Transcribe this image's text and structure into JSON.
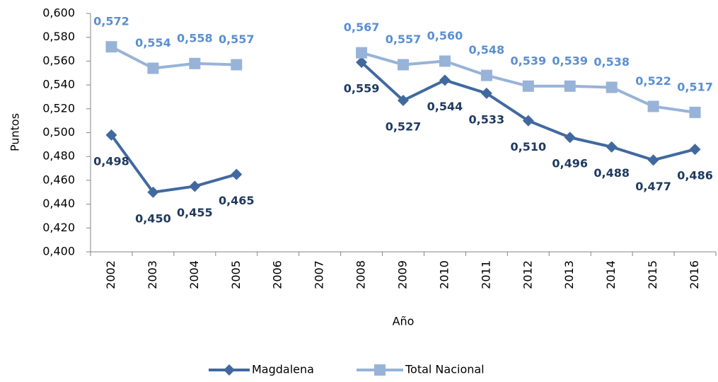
{
  "chart_data": {
    "type": "line",
    "xlabel": "Año",
    "ylabel": "Puntos",
    "categories": [
      "2002",
      "2003",
      "2004",
      "2005",
      "2006",
      "2007",
      "2008",
      "2009",
      "2010",
      "2011",
      "2012",
      "2013",
      "2014",
      "2015",
      "2016"
    ],
    "series": [
      {
        "name": "Magdalena",
        "color": "#41699f",
        "label_color": "#1f3a60",
        "marker": "diamond",
        "values": [
          0.498,
          0.45,
          0.455,
          0.465,
          null,
          null,
          0.559,
          0.527,
          0.544,
          0.533,
          0.51,
          0.496,
          0.488,
          0.477,
          0.486
        ],
        "value_labels": [
          "0,498",
          "0,450",
          "0,455",
          "0,465",
          null,
          null,
          "0,559",
          "0,527",
          "0,544",
          "0,533",
          "0,510",
          "0,496",
          "0,488",
          "0,477",
          "0,486"
        ]
      },
      {
        "name": "Total Nacional",
        "color": "#98b3d8",
        "label_color": "#5b8fd1",
        "marker": "square",
        "values": [
          0.572,
          0.554,
          0.558,
          0.557,
          null,
          null,
          0.567,
          0.557,
          0.56,
          0.548,
          0.539,
          0.539,
          0.538,
          0.522,
          0.517
        ],
        "value_labels": [
          "0,572",
          "0,554",
          "0,558",
          "0,557",
          null,
          null,
          "0,567",
          "0,557",
          "0,560",
          "0,548",
          "0,539",
          "0,539",
          "0,538",
          "0,522",
          "0,517"
        ]
      }
    ],
    "ylim": [
      0.4,
      0.6
    ],
    "yticks": [
      {
        "value": 0.4,
        "label": "0,400"
      },
      {
        "value": 0.42,
        "label": "0,420"
      },
      {
        "value": 0.44,
        "label": "0,440"
      },
      {
        "value": 0.46,
        "label": "0,460"
      },
      {
        "value": 0.48,
        "label": "0,480"
      },
      {
        "value": 0.5,
        "label": "0,500"
      },
      {
        "value": 0.52,
        "label": "0,520"
      },
      {
        "value": 0.54,
        "label": "0,540"
      },
      {
        "value": 0.56,
        "label": "0,560"
      },
      {
        "value": 0.58,
        "label": "0,580"
      },
      {
        "value": 0.6,
        "label": "0,600"
      }
    ],
    "legend": "bottom"
  }
}
